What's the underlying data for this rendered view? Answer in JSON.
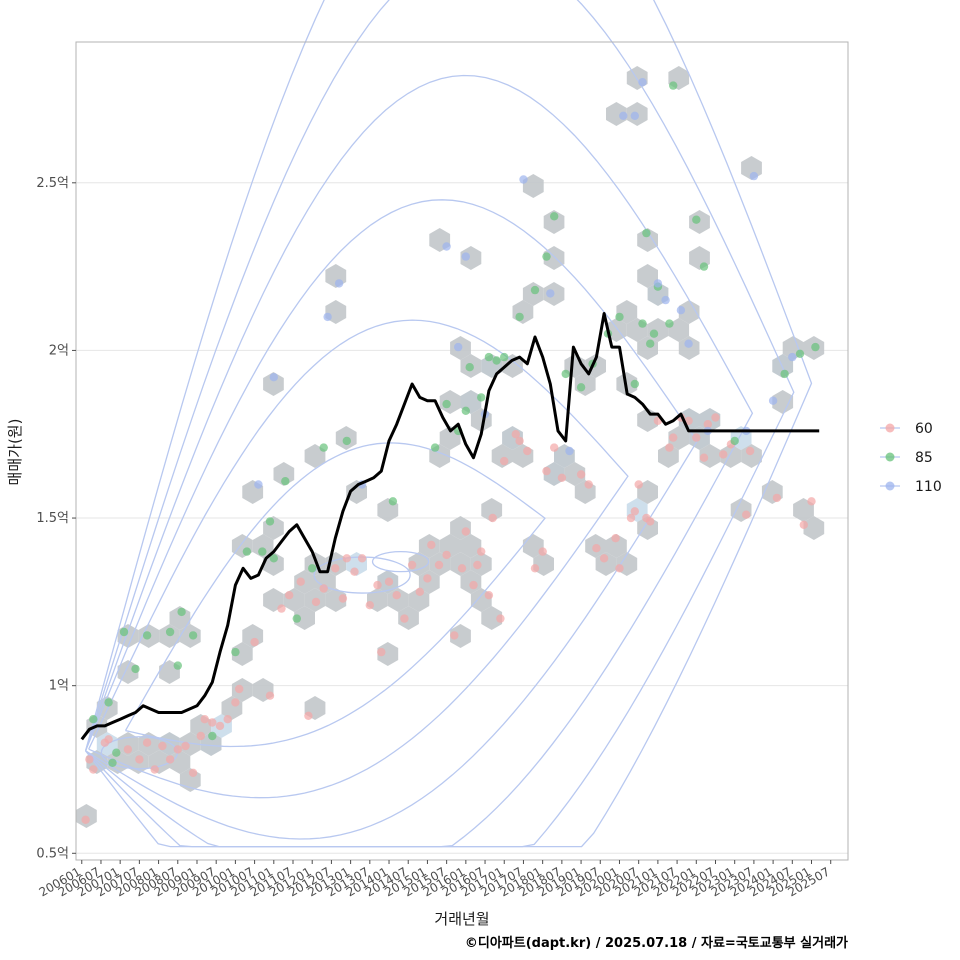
{
  "chart_data": {
    "type": "scatter",
    "title": "",
    "xlabel": "거래년월",
    "ylabel": "매매가(원)",
    "caption": "©디아파트(dapt.kr) / 2025.07.18 / 자료=국토교통부 실거래가",
    "x_range": [
      2005.85,
      2025.95
    ],
    "y_range": [
      0.48,
      2.92
    ],
    "y_unit": "억",
    "y_ticks": [
      {
        "value": 0.5,
        "label": "0.5억"
      },
      {
        "value": 1.0,
        "label": "1억"
      },
      {
        "value": 1.5,
        "label": "1.5억"
      },
      {
        "value": 2.0,
        "label": "2억"
      },
      {
        "value": 2.5,
        "label": "2.5억"
      }
    ],
    "x_ticks": [
      "200601",
      "200607",
      "200701",
      "200707",
      "200801",
      "200807",
      "200901",
      "200907",
      "201001",
      "201007",
      "201101",
      "201107",
      "201201",
      "201207",
      "201301",
      "201307",
      "201401",
      "201407",
      "201501",
      "201507",
      "201601",
      "201607",
      "201701",
      "201707",
      "201801",
      "201807",
      "201901",
      "201907",
      "202001",
      "202007",
      "202101",
      "202107",
      "202201",
      "202207",
      "202301",
      "202307",
      "202401",
      "202407",
      "202501",
      "202507"
    ],
    "legend": {
      "position": "right",
      "entries": [
        {
          "name": "60",
          "color": "#f4a6a6"
        },
        {
          "name": "85",
          "color": "#66c27a"
        },
        {
          "name": "110",
          "color": "#9db4ee"
        }
      ]
    },
    "series": [
      {
        "name": "60",
        "points": [
          [
            2006.1,
            0.6
          ],
          [
            2006.2,
            0.78
          ],
          [
            2006.3,
            0.75
          ],
          [
            2006.6,
            0.83
          ],
          [
            2006.7,
            0.84
          ],
          [
            2007.2,
            0.81
          ],
          [
            2007.5,
            0.78
          ],
          [
            2007.7,
            0.83
          ],
          [
            2007.9,
            0.75
          ],
          [
            2008.1,
            0.82
          ],
          [
            2008.3,
            0.78
          ],
          [
            2008.5,
            0.81
          ],
          [
            2008.7,
            0.82
          ],
          [
            2008.9,
            0.74
          ],
          [
            2009.1,
            0.85
          ],
          [
            2009.2,
            0.9
          ],
          [
            2009.4,
            0.89
          ],
          [
            2009.6,
            0.88
          ],
          [
            2009.8,
            0.9
          ],
          [
            2010.0,
            0.95
          ],
          [
            2010.1,
            0.99
          ],
          [
            2010.5,
            1.13
          ],
          [
            2010.9,
            0.97
          ],
          [
            2011.2,
            1.23
          ],
          [
            2011.4,
            1.27
          ],
          [
            2011.7,
            1.31
          ],
          [
            2011.9,
            0.91
          ],
          [
            2012.1,
            1.25
          ],
          [
            2012.3,
            1.29
          ],
          [
            2012.6,
            1.35
          ],
          [
            2012.8,
            1.26
          ],
          [
            2012.9,
            1.38
          ],
          [
            2013.1,
            1.34
          ],
          [
            2013.3,
            1.38
          ],
          [
            2013.5,
            1.24
          ],
          [
            2013.7,
            1.3
          ],
          [
            2013.8,
            1.1
          ],
          [
            2014.0,
            1.31
          ],
          [
            2014.2,
            1.27
          ],
          [
            2014.4,
            1.2
          ],
          [
            2014.6,
            1.36
          ],
          [
            2014.8,
            1.28
          ],
          [
            2015.0,
            1.32
          ],
          [
            2015.1,
            1.42
          ],
          [
            2015.3,
            1.36
          ],
          [
            2015.5,
            1.39
          ],
          [
            2015.7,
            1.15
          ],
          [
            2015.9,
            1.35
          ],
          [
            2016.0,
            1.46
          ],
          [
            2016.2,
            1.3
          ],
          [
            2016.3,
            1.36
          ],
          [
            2016.4,
            1.4
          ],
          [
            2016.6,
            1.27
          ],
          [
            2016.7,
            1.5
          ],
          [
            2016.9,
            1.2
          ],
          [
            2017.0,
            1.67
          ],
          [
            2017.3,
            1.75
          ],
          [
            2017.4,
            1.73
          ],
          [
            2017.6,
            1.7
          ],
          [
            2017.8,
            1.35
          ],
          [
            2018.0,
            1.4
          ],
          [
            2018.1,
            1.64
          ],
          [
            2018.3,
            1.71
          ],
          [
            2018.5,
            1.62
          ],
          [
            2019.0,
            1.63
          ],
          [
            2019.2,
            1.6
          ],
          [
            2019.4,
            1.41
          ],
          [
            2019.6,
            1.38
          ],
          [
            2019.9,
            1.44
          ],
          [
            2020.0,
            1.35
          ],
          [
            2020.3,
            1.5
          ],
          [
            2020.4,
            1.52
          ],
          [
            2020.5,
            1.6
          ],
          [
            2020.7,
            1.5
          ],
          [
            2020.8,
            1.49
          ],
          [
            2021.0,
            1.79
          ],
          [
            2021.3,
            1.71
          ],
          [
            2021.4,
            1.74
          ],
          [
            2021.6,
            1.8
          ],
          [
            2021.8,
            1.79
          ],
          [
            2022.0,
            1.74
          ],
          [
            2022.2,
            1.68
          ],
          [
            2022.3,
            1.78
          ],
          [
            2022.5,
            1.8
          ],
          [
            2022.7,
            1.69
          ],
          [
            2022.9,
            1.72
          ],
          [
            2023.3,
            1.51
          ],
          [
            2023.4,
            1.7
          ],
          [
            2024.1,
            1.56
          ],
          [
            2024.8,
            1.48
          ],
          [
            2025.0,
            1.55
          ]
        ]
      },
      {
        "name": "85",
        "points": [
          [
            2006.3,
            0.9
          ],
          [
            2006.7,
            0.95
          ],
          [
            2006.8,
            0.77
          ],
          [
            2006.9,
            0.8
          ],
          [
            2007.1,
            1.16
          ],
          [
            2007.4,
            1.05
          ],
          [
            2007.7,
            1.15
          ],
          [
            2008.3,
            1.16
          ],
          [
            2008.5,
            1.06
          ],
          [
            2008.6,
            1.22
          ],
          [
            2008.9,
            1.15
          ],
          [
            2009.4,
            0.85
          ],
          [
            2010.0,
            1.1
          ],
          [
            2010.3,
            1.4
          ],
          [
            2010.7,
            1.4
          ],
          [
            2010.9,
            1.49
          ],
          [
            2011.0,
            1.38
          ],
          [
            2011.3,
            1.61
          ],
          [
            2011.6,
            1.2
          ],
          [
            2012.0,
            1.35
          ],
          [
            2012.3,
            1.71
          ],
          [
            2012.9,
            1.73
          ],
          [
            2014.1,
            1.55
          ],
          [
            2015.2,
            1.71
          ],
          [
            2015.5,
            1.84
          ],
          [
            2015.8,
            1.76
          ],
          [
            2016.0,
            1.82
          ],
          [
            2016.1,
            1.95
          ],
          [
            2016.4,
            1.86
          ],
          [
            2016.6,
            1.98
          ],
          [
            2016.8,
            1.97
          ],
          [
            2017.0,
            1.98
          ],
          [
            2017.4,
            2.1
          ],
          [
            2017.8,
            2.18
          ],
          [
            2018.1,
            2.28
          ],
          [
            2018.3,
            2.4
          ],
          [
            2018.6,
            1.93
          ],
          [
            2019.0,
            1.89
          ],
          [
            2019.3,
            1.96
          ],
          [
            2019.7,
            2.05
          ],
          [
            2020.0,
            2.1
          ],
          [
            2020.4,
            1.9
          ],
          [
            2020.6,
            2.08
          ],
          [
            2020.7,
            2.35
          ],
          [
            2020.8,
            2.02
          ],
          [
            2020.9,
            2.05
          ],
          [
            2021.0,
            2.19
          ],
          [
            2021.3,
            2.08
          ],
          [
            2021.4,
            2.79
          ],
          [
            2022.0,
            2.39
          ],
          [
            2022.2,
            2.25
          ],
          [
            2023.0,
            1.73
          ],
          [
            2024.3,
            1.93
          ],
          [
            2024.7,
            1.99
          ],
          [
            2025.1,
            2.01
          ]
        ]
      },
      {
        "name": "110",
        "points": [
          [
            2010.6,
            1.6
          ],
          [
            2011.0,
            1.92
          ],
          [
            2012.4,
            2.1
          ],
          [
            2012.7,
            2.2
          ],
          [
            2013.3,
            1.6
          ],
          [
            2015.5,
            2.31
          ],
          [
            2015.8,
            2.01
          ],
          [
            2016.0,
            2.28
          ],
          [
            2016.5,
            1.81
          ],
          [
            2017.5,
            2.51
          ],
          [
            2018.2,
            2.17
          ],
          [
            2018.7,
            1.7
          ],
          [
            2020.1,
            2.7
          ],
          [
            2020.4,
            2.7
          ],
          [
            2020.6,
            2.8
          ],
          [
            2021.0,
            2.2
          ],
          [
            2021.2,
            2.15
          ],
          [
            2021.6,
            2.12
          ],
          [
            2021.8,
            2.02
          ],
          [
            2022.3,
            1.76
          ],
          [
            2023.3,
            1.76
          ],
          [
            2023.5,
            2.52
          ],
          [
            2024.0,
            1.85
          ],
          [
            2024.5,
            1.98
          ]
        ]
      }
    ],
    "median_line": {
      "color": "#000000",
      "x": [
        2006.0,
        2006.2,
        2006.4,
        2006.6,
        2006.8,
        2007.0,
        2007.2,
        2007.4,
        2007.6,
        2007.8,
        2008.0,
        2008.2,
        2008.4,
        2008.6,
        2008.8,
        2009.0,
        2009.2,
        2009.4,
        2009.6,
        2009.8,
        2010.0,
        2010.2,
        2010.4,
        2010.6,
        2010.8,
        2011.0,
        2011.2,
        2011.4,
        2011.6,
        2011.8,
        2012.0,
        2012.2,
        2012.4,
        2012.6,
        2012.8,
        2013.0,
        2013.2,
        2013.4,
        2013.6,
        2013.8,
        2014.0,
        2014.2,
        2014.4,
        2014.6,
        2014.8,
        2015.0,
        2015.2,
        2015.4,
        2015.6,
        2015.8,
        2016.0,
        2016.2,
        2016.4,
        2016.6,
        2016.8,
        2017.0,
        2017.2,
        2017.4,
        2017.6,
        2017.8,
        2018.0,
        2018.2,
        2018.4,
        2018.6,
        2018.8,
        2019.0,
        2019.2,
        2019.4,
        2019.6,
        2019.8,
        2020.0,
        2020.2,
        2020.4,
        2020.6,
        2020.8,
        2021.0,
        2021.2,
        2021.4,
        2021.6,
        2021.8,
        2022.0,
        2022.2,
        2022.4,
        2022.6,
        2022.8,
        2023.0,
        2023.2,
        2023.4,
        2023.6,
        2023.8,
        2024.0,
        2024.2,
        2024.4,
        2024.6,
        2024.8,
        2025.0,
        2025.2
      ],
      "y": [
        0.84,
        0.87,
        0.88,
        0.88,
        0.89,
        0.9,
        0.91,
        0.92,
        0.94,
        0.93,
        0.92,
        0.92,
        0.92,
        0.92,
        0.93,
        0.94,
        0.97,
        1.01,
        1.1,
        1.18,
        1.3,
        1.35,
        1.32,
        1.33,
        1.38,
        1.4,
        1.43,
        1.46,
        1.48,
        1.44,
        1.4,
        1.34,
        1.34,
        1.44,
        1.52,
        1.58,
        1.6,
        1.61,
        1.62,
        1.64,
        1.73,
        1.78,
        1.84,
        1.9,
        1.86,
        1.85,
        1.85,
        1.8,
        1.76,
        1.78,
        1.72,
        1.68,
        1.75,
        1.88,
        1.93,
        1.95,
        1.97,
        1.98,
        1.96,
        2.04,
        1.98,
        1.9,
        1.76,
        1.73,
        2.01,
        1.96,
        1.93,
        1.98,
        2.11,
        2.01,
        2.01,
        1.87,
        1.86,
        1.84,
        1.81,
        1.81,
        1.78,
        1.79,
        1.81,
        1.76,
        1.76,
        1.76,
        1.76,
        1.76,
        1.76,
        1.76,
        1.76,
        1.76,
        1.76,
        1.76,
        1.76,
        1.76,
        1.76,
        1.76,
        1.76,
        1.76,
        1.76
      ]
    }
  }
}
